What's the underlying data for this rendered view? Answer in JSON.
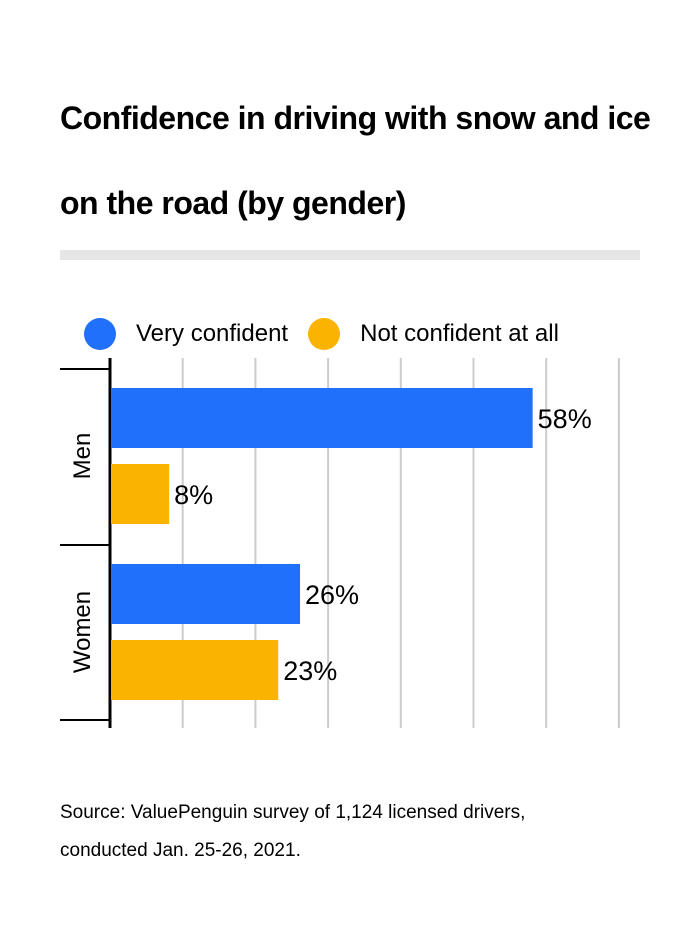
{
  "title": "Confidence in driving with snow and ice on the road (by gender)",
  "source": {
    "line1": "Source: ValuePenguin survey of 1,124 licensed drivers,",
    "line2": "conducted Jan. 25-26, 2021."
  },
  "colors": {
    "very_confident": "#2170fb",
    "not_confident": "#f9b300",
    "grid": "#cccccc",
    "divider": "#e6e6e6"
  },
  "legend": [
    {
      "label": "Very confident",
      "color": "#2170fb"
    },
    {
      "label": "Not confident at all",
      "color": "#f9b300"
    }
  ],
  "chart_data": {
    "type": "bar",
    "orientation": "horizontal",
    "categories": [
      "Men",
      "Women"
    ],
    "series": [
      {
        "name": "Very confident",
        "values": [
          58,
          26
        ],
        "labels": [
          "58%",
          "26%"
        ]
      },
      {
        "name": "Not confident at all",
        "values": [
          8,
          23
        ],
        "labels": [
          "8%",
          "23%"
        ]
      }
    ],
    "xlim": [
      0,
      70
    ],
    "grid": true,
    "legend_position": "top-left"
  }
}
